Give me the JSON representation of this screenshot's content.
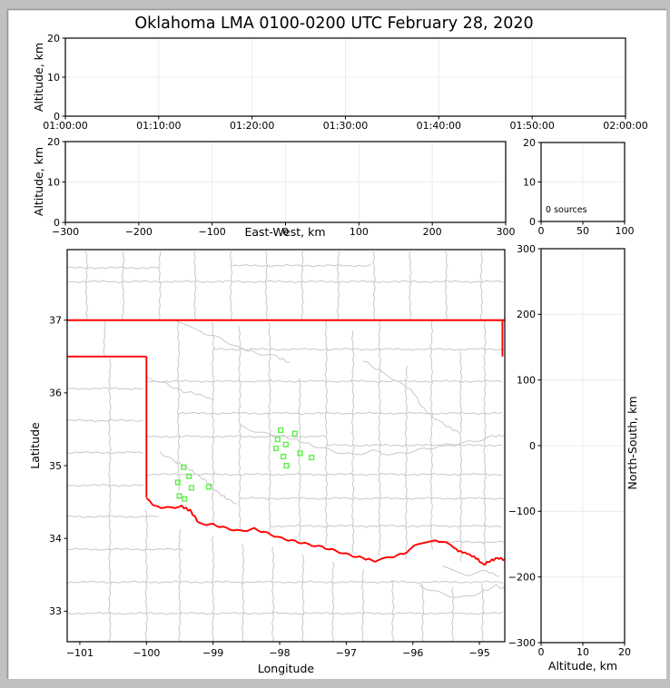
{
  "title": "Oklahoma LMA 0100-0200 UTC February 28, 2020",
  "colors": {
    "frame_bg": "#c0c0c0",
    "frame_bevel": "#969696",
    "figure_bg": "#ffffff",
    "axis": "#000000",
    "grid": "#ececec",
    "county_line": "#c8c8c8",
    "state_border_red": "#ff0000",
    "source_green": "#5df04a"
  },
  "chart_data": [
    {
      "id": "time_height",
      "type": "scatter",
      "xlabel": "",
      "ylabel": "Altitude, km",
      "xlim": [
        0,
        6
      ],
      "ylim": [
        0,
        20
      ],
      "xticks": {
        "values": [
          0,
          1,
          2,
          3,
          4,
          5,
          6
        ],
        "labels": [
          "01:00:00",
          "01:10:00",
          "01:20:00",
          "01:30:00",
          "01:40:00",
          "01:50:00",
          "02:00:00"
        ]
      },
      "yticks": {
        "values": [
          0,
          10,
          20
        ],
        "labels": [
          "0",
          "10",
          "20"
        ]
      },
      "points": []
    },
    {
      "id": "ew_height",
      "type": "scatter",
      "xlabel": "East-West, km",
      "ylabel": "Altitude, km",
      "xlim": [
        -300,
        300
      ],
      "ylim": [
        0,
        20
      ],
      "xticks": {
        "values": [
          -300,
          -200,
          -100,
          0,
          100,
          200,
          300
        ],
        "labels": [
          "−300",
          "−200",
          "−100",
          "0",
          "100",
          "200",
          "300"
        ]
      },
      "yticks": {
        "values": [
          0,
          10,
          20
        ],
        "labels": [
          "0",
          "10",
          "20"
        ]
      },
      "points": []
    },
    {
      "id": "alt_histogram",
      "type": "line",
      "xlabel": "",
      "ylabel": "",
      "annotation": "0 sources",
      "xlim": [
        0,
        100
      ],
      "ylim": [
        0,
        20
      ],
      "xticks": {
        "values": [
          0,
          50,
          100
        ],
        "labels": [
          "0",
          "50",
          "100"
        ]
      },
      "yticks": {
        "values": [
          0,
          10,
          20
        ],
        "labels": [
          "0",
          "10",
          "20"
        ]
      },
      "points": []
    },
    {
      "id": "plan_view_map",
      "type": "scatter",
      "xlabel": "Longitude",
      "ylabel": "Latitude",
      "xlim": [
        -101.19,
        -94.62
      ],
      "ylim": [
        32.58,
        37.97
      ],
      "xticks": {
        "values": [
          -101,
          -100,
          -99,
          -98,
          -97,
          -96,
          -95
        ],
        "labels": [
          "−101",
          "−100",
          "−99",
          "−98",
          "−97",
          "−96",
          "−95"
        ]
      },
      "yticks": {
        "values": [
          33,
          34,
          35,
          36,
          37
        ],
        "labels": [
          "33",
          "34",
          "35",
          "36",
          "37"
        ]
      },
      "sources": [
        {
          "lon": -97.985,
          "lat": 35.487
        },
        {
          "lon": -97.771,
          "lat": 35.441
        },
        {
          "lon": -98.03,
          "lat": 35.362
        },
        {
          "lon": -97.907,
          "lat": 35.291
        },
        {
          "lon": -98.053,
          "lat": 35.237
        },
        {
          "lon": -97.693,
          "lat": 35.17
        },
        {
          "lon": -97.944,
          "lat": 35.125
        },
        {
          "lon": -97.521,
          "lat": 35.112
        },
        {
          "lon": -97.897,
          "lat": 35.0
        },
        {
          "lon": -99.442,
          "lat": 34.979
        },
        {
          "lon": -99.36,
          "lat": 34.854
        },
        {
          "lon": -99.529,
          "lat": 34.77
        },
        {
          "lon": -99.324,
          "lat": 34.695
        },
        {
          "lon": -99.065,
          "lat": 34.708
        },
        {
          "lon": -99.505,
          "lat": 34.583
        },
        {
          "lon": -99.429,
          "lat": 34.542
        }
      ],
      "state_border": [
        [
          [
            -101.19,
            37.0
          ],
          [
            -94.62,
            37.0
          ]
        ],
        [
          [
            -94.655,
            37.0
          ],
          [
            -94.655,
            36.5
          ]
        ],
        [
          [
            -101.19,
            36.5
          ],
          [
            -100.0,
            36.5
          ]
        ],
        [
          [
            -100.0,
            36.5
          ],
          [
            -100.0,
            34.56
          ]
        ]
      ],
      "red_river": [
        [
          -100.0,
          34.56
        ],
        [
          -99.88,
          34.44
        ],
        [
          -99.68,
          34.42
        ],
        [
          -99.47,
          34.44
        ],
        [
          -99.34,
          34.38
        ],
        [
          -99.2,
          34.2
        ],
        [
          -99.0,
          34.19
        ],
        [
          -98.8,
          34.14
        ],
        [
          -98.59,
          34.1
        ],
        [
          -98.38,
          34.13
        ],
        [
          -98.18,
          34.07
        ],
        [
          -97.97,
          34.0
        ],
        [
          -97.77,
          33.96
        ],
        [
          -97.57,
          33.92
        ],
        [
          -97.36,
          33.88
        ],
        [
          -97.16,
          33.83
        ],
        [
          -96.95,
          33.77
        ],
        [
          -96.75,
          33.73
        ],
        [
          -96.57,
          33.69
        ],
        [
          -96.34,
          33.74
        ],
        [
          -96.14,
          33.79
        ],
        [
          -95.93,
          33.92
        ],
        [
          -95.66,
          33.98
        ],
        [
          -95.45,
          33.92
        ],
        [
          -95.32,
          33.83
        ],
        [
          -95.18,
          33.79
        ],
        [
          -95.05,
          33.73
        ],
        [
          -94.94,
          33.64
        ],
        [
          -94.84,
          33.69
        ],
        [
          -94.73,
          33.73
        ],
        [
          -94.62,
          33.71
        ]
      ],
      "county_verticals": [
        [
          -100.9,
          37,
          37.97
        ],
        [
          -100.35,
          37,
          37.97
        ],
        [
          -99.8,
          37,
          37.97
        ],
        [
          -99.27,
          37,
          37.97
        ],
        [
          -98.73,
          37,
          37.97
        ],
        [
          -98.2,
          37,
          37.97
        ],
        [
          -97.66,
          37,
          37.97
        ],
        [
          -97.12,
          37,
          37.97
        ],
        [
          -96.58,
          37,
          37.97
        ],
        [
          -96.04,
          37,
          37.97
        ],
        [
          -95.5,
          37,
          37.97
        ],
        [
          -94.97,
          37,
          37.97
        ],
        [
          -100.63,
          36.5,
          37
        ],
        [
          -100.55,
          32.58,
          36.5
        ],
        [
          -100.0,
          32.58,
          34.42
        ],
        [
          -99.5,
          32.58,
          34.15
        ],
        [
          -99.0,
          32.58,
          34.05
        ],
        [
          -98.55,
          32.58,
          33.95
        ],
        [
          -98.1,
          32.58,
          33.9
        ],
        [
          -97.65,
          32.58,
          33.8
        ],
        [
          -97.2,
          32.58,
          33.72
        ],
        [
          -96.75,
          32.58,
          33.6
        ],
        [
          -96.3,
          32.58,
          33.45
        ],
        [
          -95.85,
          32.58,
          33.4
        ],
        [
          -95.4,
          32.58,
          33.35
        ],
        [
          -94.95,
          32.58,
          33.4
        ],
        [
          -99.52,
          34.65,
          37
        ],
        [
          -99.0,
          34.22,
          37
        ],
        [
          -98.6,
          34.12,
          36.95
        ],
        [
          -98.15,
          34.07,
          37
        ],
        [
          -97.7,
          33.95,
          36.2
        ],
        [
          -97.3,
          33.9,
          37
        ],
        [
          -96.9,
          33.8,
          36.85
        ],
        [
          -96.5,
          33.75,
          37
        ],
        [
          -96.1,
          33.72,
          36.4
        ],
        [
          -95.72,
          33.85,
          37
        ],
        [
          -95.28,
          33.68,
          36.6
        ],
        [
          -94.92,
          33.65,
          37
        ]
      ],
      "county_horizontals": [
        [
          37.53,
          -101.19,
          -94.62
        ],
        [
          37.72,
          -101.19,
          -99.8
        ],
        [
          37.75,
          -98.73,
          -96.58
        ],
        [
          36.6,
          -99.0,
          -94.62
        ],
        [
          36.16,
          -100.0,
          -94.62
        ],
        [
          35.72,
          -99.52,
          -94.62
        ],
        [
          35.4,
          -100.0,
          -97.3
        ],
        [
          35.28,
          -97.3,
          -94.62
        ],
        [
          34.88,
          -100.0,
          -94.62
        ],
        [
          34.55,
          -98.6,
          -94.62
        ],
        [
          34.17,
          -98.15,
          -94.62
        ],
        [
          33.95,
          -95.72,
          -94.62
        ],
        [
          36.06,
          -101.19,
          -100.0
        ],
        [
          35.62,
          -101.19,
          -100.0
        ],
        [
          35.18,
          -101.19,
          -100.0
        ],
        [
          34.73,
          -101.19,
          -100.0
        ],
        [
          34.3,
          -101.19,
          -99.8
        ],
        [
          33.85,
          -101.19,
          -99.4
        ],
        [
          33.4,
          -101.19,
          -94.62
        ],
        [
          32.97,
          -101.19,
          -94.62
        ]
      ],
      "rivers": [
        [
          [
            -99.55,
            36.97
          ],
          [
            -99.2,
            36.85
          ],
          [
            -98.9,
            36.75
          ],
          [
            -98.6,
            36.62
          ],
          [
            -98.35,
            36.55
          ],
          [
            -98.05,
            36.5
          ],
          [
            -97.85,
            36.42
          ]
        ],
        [
          [
            -100.0,
            36.22
          ],
          [
            -99.7,
            36.12
          ],
          [
            -99.45,
            36.02
          ],
          [
            -99.2,
            35.98
          ],
          [
            -99.0,
            35.9
          ]
        ],
        [
          [
            -98.6,
            35.55
          ],
          [
            -98.3,
            35.45
          ],
          [
            -98.0,
            35.42
          ],
          [
            -97.75,
            35.35
          ],
          [
            -97.5,
            35.28
          ],
          [
            -97.2,
            35.2
          ],
          [
            -96.9,
            35.15
          ],
          [
            -96.6,
            35.2
          ],
          [
            -96.3,
            35.15
          ],
          [
            -96.0,
            35.2
          ],
          [
            -95.7,
            35.25
          ],
          [
            -95.4,
            35.3
          ],
          [
            -95.1,
            35.33
          ],
          [
            -94.8,
            35.4
          ],
          [
            -94.62,
            35.42
          ]
        ],
        [
          [
            -99.8,
            35.18
          ],
          [
            -99.55,
            35.05
          ],
          [
            -99.35,
            34.95
          ],
          [
            -99.2,
            34.85
          ],
          [
            -99.05,
            34.75
          ],
          [
            -98.95,
            34.65
          ],
          [
            -98.8,
            34.55
          ],
          [
            -98.65,
            34.48
          ]
        ],
        [
          [
            -96.75,
            36.45
          ],
          [
            -96.5,
            36.3
          ],
          [
            -96.2,
            36.15
          ],
          [
            -95.98,
            36.0
          ],
          [
            -95.9,
            35.85
          ],
          [
            -95.75,
            35.7
          ],
          [
            -95.5,
            35.55
          ],
          [
            -95.3,
            35.45
          ]
        ],
        [
          [
            -95.9,
            33.35
          ],
          [
            -95.6,
            33.25
          ],
          [
            -95.3,
            33.18
          ],
          [
            -95.0,
            33.25
          ],
          [
            -94.75,
            33.35
          ],
          [
            -94.62,
            33.3
          ]
        ],
        [
          [
            -95.55,
            33.6
          ],
          [
            -95.2,
            33.5
          ],
          [
            -94.9,
            33.55
          ],
          [
            -94.7,
            33.48
          ]
        ]
      ]
    },
    {
      "id": "ns_height",
      "type": "scatter",
      "xlabel": "Altitude, km",
      "ylabel": "North-South, km",
      "xlim": [
        0,
        20
      ],
      "ylim": [
        -300,
        300
      ],
      "xticks": {
        "values": [
          0,
          10,
          20
        ],
        "labels": [
          "0",
          "10",
          "20"
        ]
      },
      "yticks": {
        "values": [
          -300,
          -200,
          -100,
          0,
          100,
          200,
          300
        ],
        "labels": [
          "−300",
          "−200",
          "−100",
          "0",
          "100",
          "200",
          "300"
        ]
      },
      "points": []
    }
  ]
}
